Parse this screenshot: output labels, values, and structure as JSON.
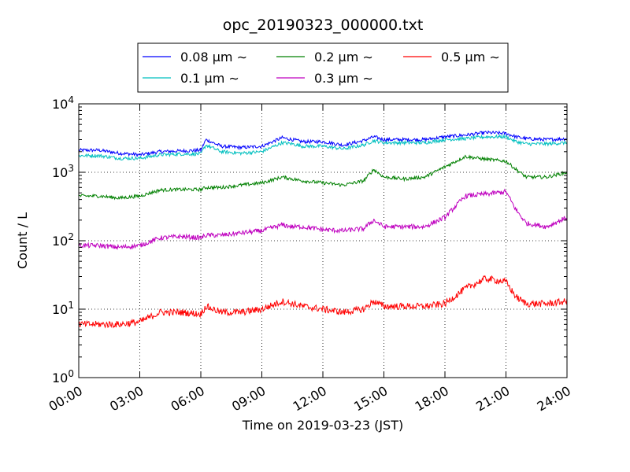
{
  "chart_data": {
    "type": "line",
    "title": "opc_20190323_000000.txt",
    "xlabel": "Time on 2019-03-23 (JST)",
    "ylabel": "Count / L",
    "yscale": "log",
    "ylim": [
      1,
      10000
    ],
    "xlim": [
      "00:00",
      "24:00"
    ],
    "grid": true,
    "legend_position": "top",
    "x_tick_labels": [
      "00:00",
      "03:00",
      "06:00",
      "09:00",
      "12:00",
      "15:00",
      "18:00",
      "21:00",
      "24:00"
    ],
    "y_tick_labels": [
      {
        "base": "10",
        "exp": "0"
      },
      {
        "base": "10",
        "exp": "1"
      },
      {
        "base": "10",
        "exp": "2"
      },
      {
        "base": "10",
        "exp": "3"
      },
      {
        "base": "10",
        "exp": "4"
      }
    ],
    "x_hours": [
      0,
      1,
      2,
      3,
      4,
      5,
      6,
      6.25,
      7,
      8,
      9,
      10,
      10.5,
      11,
      12,
      13,
      14,
      14.5,
      15,
      16,
      17,
      18,
      19,
      20,
      21,
      21.5,
      22,
      23,
      24
    ],
    "series": [
      {
        "name": "0.08 μm ∼",
        "color": "#0000ff",
        "values": [
          2100,
          2100,
          1900,
          1800,
          2000,
          2050,
          2100,
          3000,
          2400,
          2300,
          2400,
          3200,
          3000,
          2800,
          2800,
          2500,
          2900,
          3300,
          3000,
          3000,
          3000,
          3300,
          3500,
          3800,
          3700,
          3300,
          3100,
          3000,
          3100
        ]
      },
      {
        "name": "0.1 μm ∼",
        "color": "#00bfbf",
        "values": [
          1750,
          1750,
          1600,
          1600,
          1800,
          1850,
          1850,
          2500,
          2000,
          1900,
          2000,
          2700,
          2600,
          2400,
          2400,
          2200,
          2500,
          2900,
          2700,
          2700,
          2700,
          3000,
          3100,
          3300,
          3300,
          2800,
          2600,
          2600,
          2700
        ]
      },
      {
        "name": "0.2 μm ∼",
        "color": "#008000",
        "values": [
          450,
          450,
          420,
          450,
          550,
          560,
          560,
          600,
          600,
          650,
          700,
          850,
          800,
          750,
          700,
          650,
          750,
          1100,
          850,
          800,
          850,
          1200,
          1700,
          1550,
          1450,
          1100,
          850,
          850,
          1000
        ]
      },
      {
        "name": "0.3 μm ∼",
        "color": "#bf00bf",
        "values": [
          85,
          85,
          80,
          85,
          110,
          115,
          110,
          120,
          120,
          130,
          140,
          170,
          160,
          160,
          145,
          140,
          150,
          200,
          160,
          160,
          160,
          220,
          450,
          480,
          520,
          280,
          180,
          160,
          220
        ]
      },
      {
        "name": "0.5 μm ∼",
        "color": "#ff0000",
        "values": [
          6,
          6,
          6,
          6.5,
          9,
          9,
          8.5,
          11,
          9,
          9,
          10,
          13,
          12,
          11,
          10,
          9,
          10,
          13,
          11,
          11,
          11,
          12,
          20,
          28,
          25,
          15,
          12,
          12,
          13
        ]
      }
    ]
  }
}
